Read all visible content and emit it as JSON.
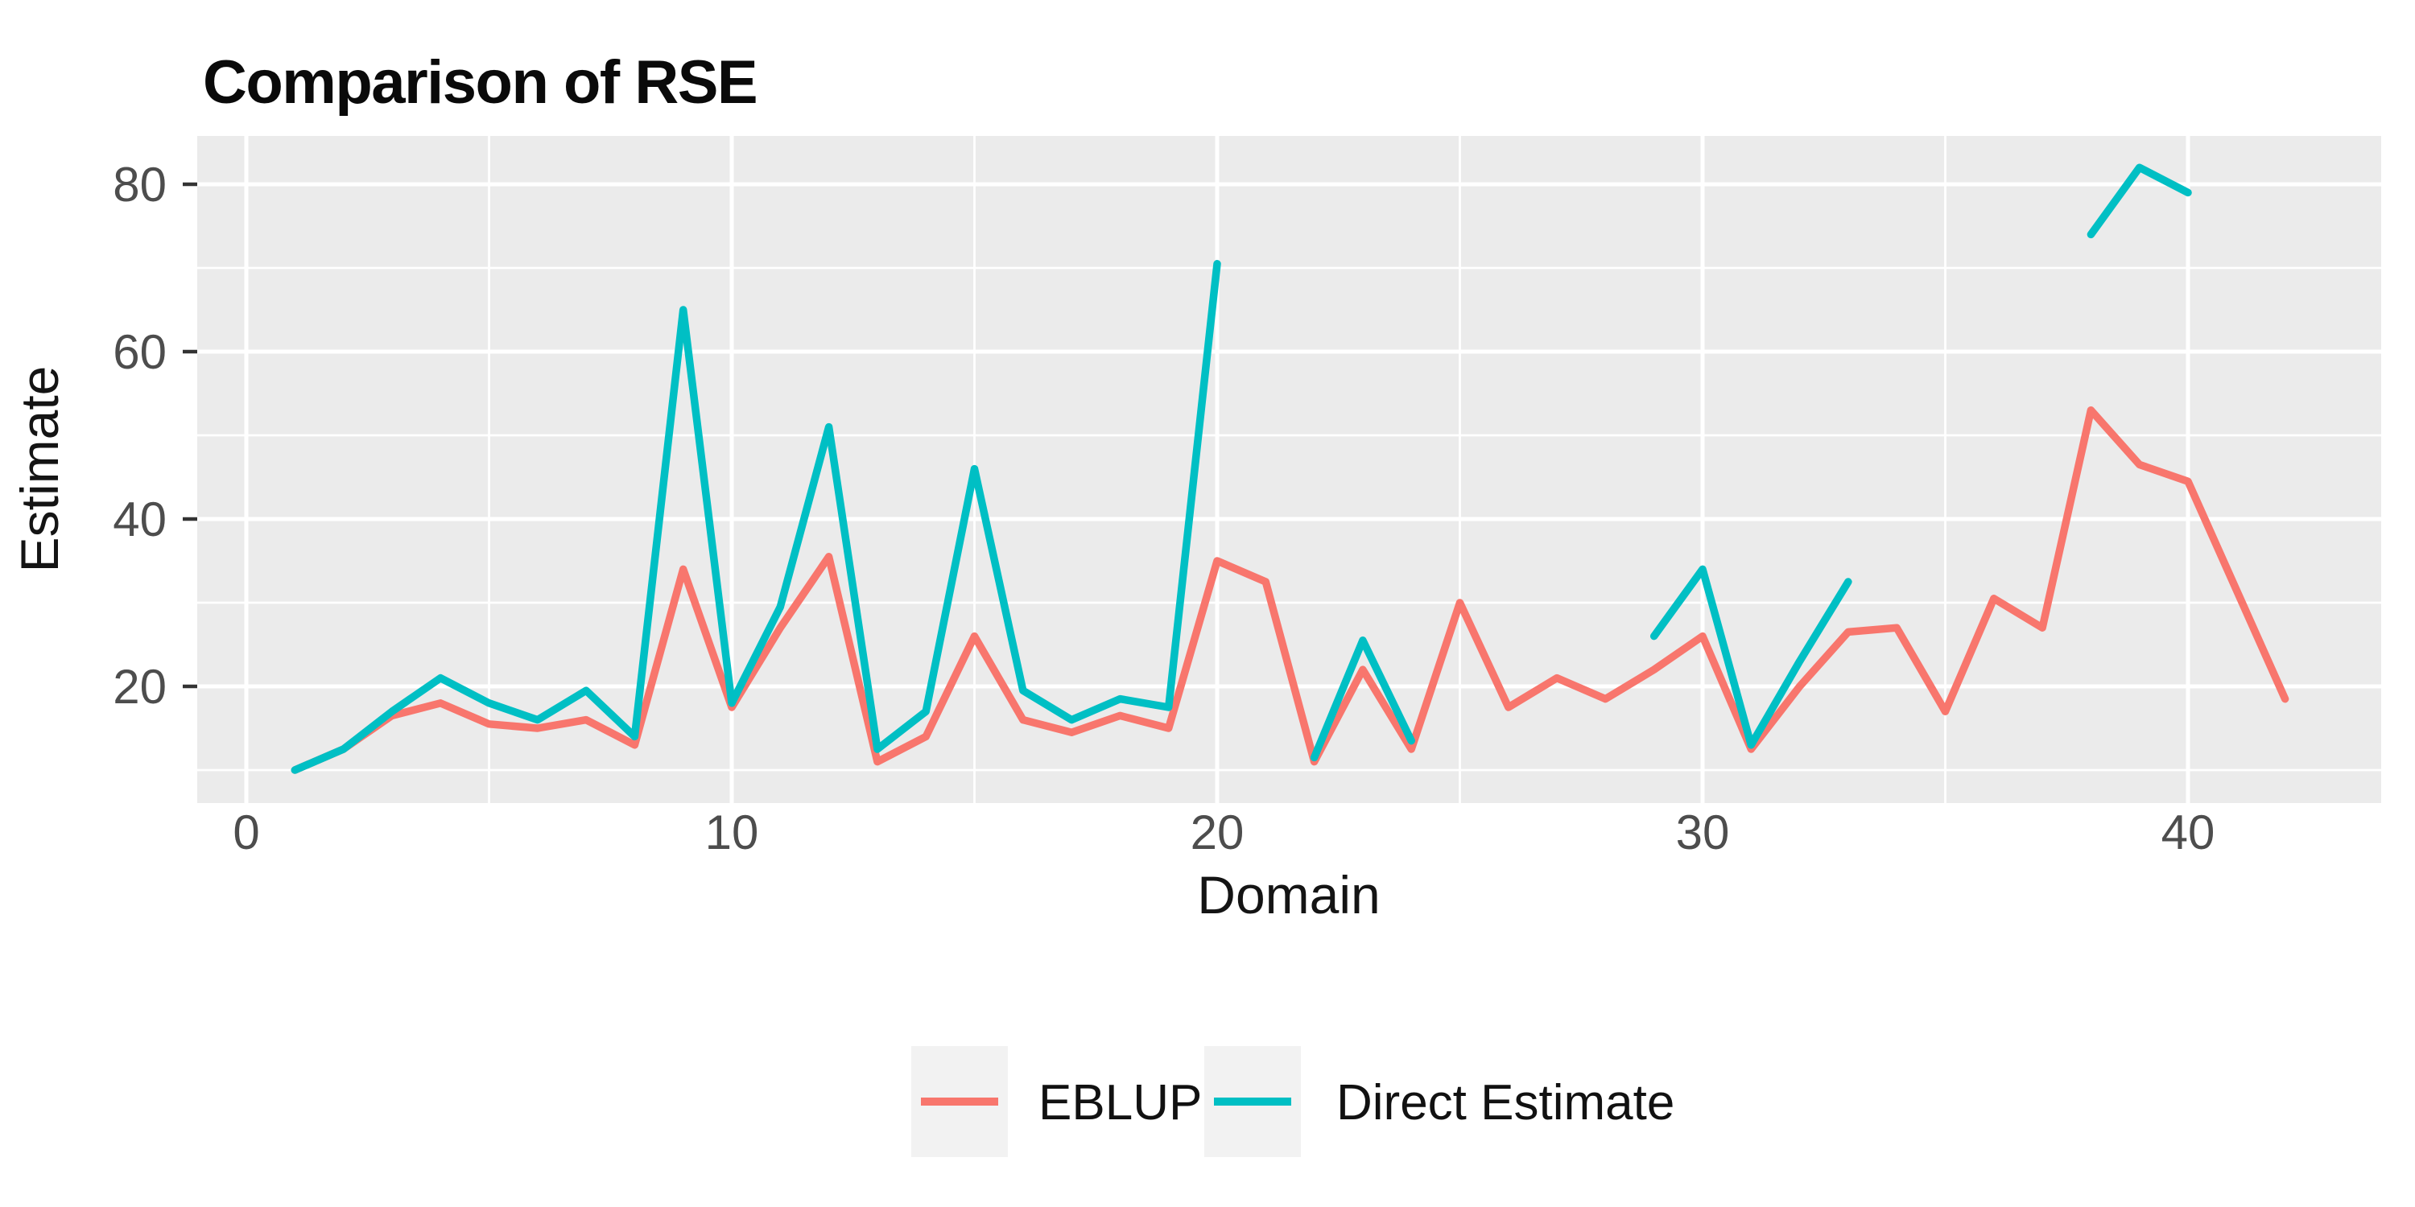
{
  "chart": {
    "title": "Comparison of RSE",
    "x_label": "Domain",
    "y_label": "Estimate",
    "legend_labels": {
      "eblup": "EBLUP",
      "direct": "Direct Estimate"
    },
    "style": {
      "panel_background": "#EBEBEB",
      "grid_color": "#FFFFFF",
      "legend_key_fill": "#F2F2F2",
      "tick_mark_color": "#333333",
      "tick_label_color": "#4d4d4d",
      "eblup_color": "#F8766D",
      "direct_color": "#00BFC4"
    }
  },
  "chart_data": {
    "type": "line",
    "title": "Comparison of RSE",
    "xlabel": "Domain",
    "ylabel": "Estimate",
    "x": [
      1,
      2,
      3,
      4,
      5,
      6,
      7,
      8,
      9,
      10,
      11,
      12,
      13,
      14,
      15,
      16,
      17,
      18,
      19,
      20,
      21,
      22,
      23,
      24,
      25,
      26,
      27,
      28,
      29,
      30,
      31,
      32,
      33,
      34,
      35,
      36,
      37,
      38,
      39,
      40,
      41,
      42
    ],
    "series": [
      {
        "name": "EBLUP",
        "color": "#F8766D",
        "values": [
          10,
          12.5,
          16.5,
          18,
          15.5,
          15,
          16,
          13,
          34,
          17.5,
          27,
          35.5,
          11,
          14,
          26,
          16,
          14.5,
          16.5,
          15,
          35,
          32.5,
          11,
          22,
          12.5,
          30,
          17.5,
          21,
          18.5,
          22,
          26,
          12.5,
          20,
          26.5,
          27,
          17,
          30.5,
          27,
          53,
          46.5,
          44.5,
          31.5,
          18.5
        ]
      },
      {
        "name": "Direct Estimate",
        "color": "#00BFC4",
        "values": [
          10,
          12.5,
          17,
          21,
          18,
          16,
          19.5,
          14,
          65,
          18,
          29.5,
          51,
          12.5,
          17,
          46,
          19.5,
          16,
          18.5,
          17.5,
          70.5,
          null,
          11.5,
          25.5,
          13.5,
          null,
          null,
          null,
          null,
          26,
          34,
          13,
          23,
          32.5,
          null,
          null,
          null,
          null,
          74,
          82,
          79,
          null,
          null
        ]
      }
    ],
    "x_ticks": [
      0,
      10,
      20,
      30,
      40
    ],
    "x_minor_ticks": [
      5,
      15,
      25,
      35
    ],
    "y_ticks": [
      20,
      40,
      60,
      80
    ],
    "y_minor_ticks": [
      10,
      30,
      50,
      70
    ],
    "xlim": [
      -1.05,
      44.05
    ],
    "ylim": [
      6.3,
      85.9
    ],
    "grid": "on",
    "legend_position": "bottom"
  }
}
